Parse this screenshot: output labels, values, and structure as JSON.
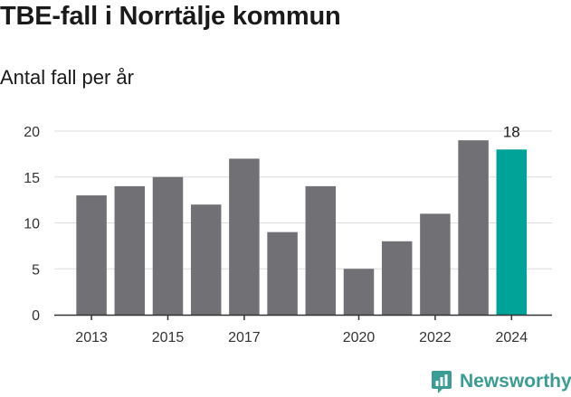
{
  "header": {
    "title": "TBE-fall i Norrtälje kommun",
    "subtitle": "Antal fall per år"
  },
  "brand": {
    "name": "Newsworthy",
    "icon": "newsworthy-logo-icon",
    "color": "#3a9c92"
  },
  "chart_data": {
    "type": "bar",
    "title": "TBE-fall i Norrtälje kommun",
    "subtitle": "Antal fall per år",
    "xlabel": "",
    "ylabel": "",
    "categories": [
      "2013",
      "2014",
      "2015",
      "2016",
      "2017",
      "2018",
      "2019",
      "2020",
      "2021",
      "2022",
      "2023",
      "2024"
    ],
    "values": [
      13,
      14,
      15,
      12,
      17,
      9,
      14,
      5,
      8,
      11,
      19,
      18
    ],
    "x_tick_labels": [
      "2013",
      "2015",
      "2017",
      "2020",
      "2022",
      "2024"
    ],
    "y_ticks": [
      0,
      5,
      10,
      15,
      20
    ],
    "y_tick_labels": [
      "0",
      "5",
      "10",
      "15",
      "20"
    ],
    "ylim": [
      0,
      20
    ],
    "grid": true,
    "bar_color": "#717074",
    "highlight_color": "#00a397",
    "highlight_index": 11,
    "annotations": [
      {
        "category": "2024",
        "text": "18"
      }
    ]
  }
}
